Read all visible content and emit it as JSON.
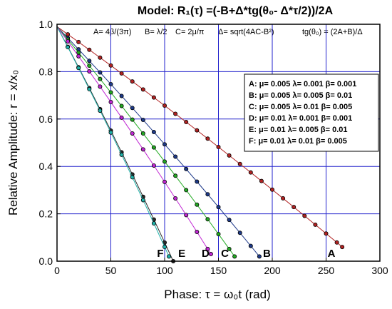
{
  "chart_data": {
    "type": "scatter",
    "title": "Model: R₁(τ) =(-B+Δ*tg(θ₀- Δ*τ/2))/2A",
    "formulas": [
      "A= 4β/(3π)",
      "B= λ/2",
      "C= 2μ/π",
      "Δ= sqrt(4AC-B²)",
      "tg(θ₀) = (2A+B)/Δ"
    ],
    "xlabel": "Phase: τ = ω₀t   (rad)",
    "ylabel": "Relative Amplitude: r = x/x₀",
    "xlim": [
      0,
      300
    ],
    "ylim": [
      0.0,
      1.0
    ],
    "xticks": [
      "0",
      "50",
      "100",
      "150",
      "200",
      "250",
      "300"
    ],
    "yticks": [
      "0.0",
      "0.2",
      "0.4",
      "0.6",
      "0.8",
      "1.0"
    ],
    "grid": true,
    "legend_position": "right",
    "legend": [
      "A: μ= 0.005 λ= 0.001 β= 0.001",
      "B: μ= 0.005 λ= 0.005 β= 0.01",
      "C: μ= 0.005 λ= 0.01   β= 0.005",
      "D: μ= 0.01   λ= 0.001 β= 0.001",
      "E: μ= 0.01   λ= 0.005 β= 0.01",
      "F: μ= 0.01   λ= 0.01   β= 0.005"
    ],
    "series": [
      {
        "name": "A",
        "label_x": 255,
        "label_y": 0.0,
        "x": [
          0,
          10,
          20,
          30,
          40,
          50,
          60,
          70,
          80,
          90,
          100,
          110,
          120,
          130,
          140,
          150,
          160,
          170,
          180,
          190,
          200,
          210,
          220,
          230,
          240,
          250,
          260,
          265
        ],
        "color": "#b22222"
      },
      {
        "name": "B",
        "label_x": 195,
        "label_y": 0.0,
        "x": [
          0,
          10,
          20,
          30,
          40,
          50,
          60,
          70,
          80,
          90,
          100,
          110,
          120,
          130,
          140,
          150,
          160,
          170,
          180,
          188
        ],
        "color": "#1e3a8a"
      },
      {
        "name": "C",
        "label_x": 156,
        "label_y": 0.0,
        "x": [
          0,
          10,
          20,
          30,
          40,
          50,
          60,
          70,
          80,
          90,
          100,
          110,
          120,
          130,
          140,
          150,
          160,
          165
        ],
        "color": "#22aa22"
      },
      {
        "name": "D",
        "label_x": 138,
        "label_y": 0.0,
        "x": [
          0,
          10,
          20,
          30,
          40,
          50,
          60,
          70,
          80,
          90,
          100,
          110,
          120,
          130,
          140,
          143
        ],
        "color": "#c026d3"
      },
      {
        "name": "E",
        "label_x": 116,
        "label_y": 0.0,
        "x": [
          0,
          10,
          20,
          30,
          40,
          50,
          60,
          70,
          80,
          90,
          100,
          108
        ],
        "color": "#2a2a2a"
      },
      {
        "name": "F",
        "label_x": 96,
        "label_y": 0.0,
        "x": [
          0,
          10,
          20,
          30,
          40,
          50,
          60,
          70,
          80,
          90,
          100,
          104
        ],
        "color": "#20b2aa"
      }
    ],
    "y_end": [
      0.06,
      0.02,
      0.02,
      0.03,
      0.0,
      0.02
    ],
    "start_y": 0.99
  },
  "colors": {
    "grid": "#2222cc",
    "axis": "#000000",
    "marker_edge": "#000000"
  }
}
